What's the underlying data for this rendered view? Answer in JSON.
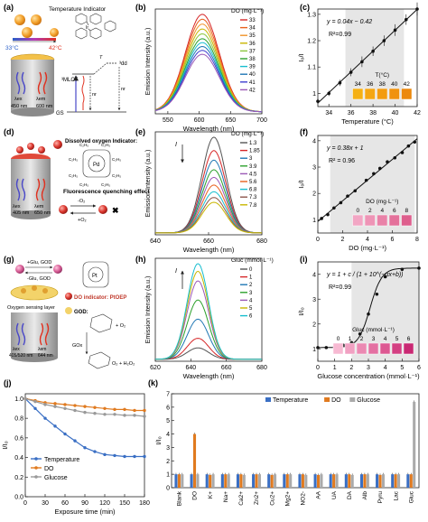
{
  "panels": {
    "a": {
      "label": "(a)",
      "temp_indicator": "Temperature Indicator",
      "t_low": "33°C",
      "t_high": "42°C",
      "lam_ex": "λex",
      "lam_ex_val": "450 nm",
      "lam_em": "λem",
      "lam_em_val": "600 nm",
      "state_dd": "³dd",
      "state_mlct": "³MLCT",
      "state_gs": "GS",
      "t_symbol": "T",
      "nr": "nr",
      "ir": "Ir"
    },
    "d": {
      "label": "(d)",
      "do_indicator": "Dissolved oxygen Indicator:",
      "lam_ex": "λex",
      "lam_ex_val": "405 nm",
      "lam_em": "λem",
      "lam_em_val": "650 nm",
      "quench": "Fluorescence quenching effect",
      "minus_o2": "-O₂",
      "plus_o2": "+O₂",
      "pd": "Pd",
      "c2h5": "C₂H₅"
    },
    "g": {
      "label": "(g)",
      "plus_glu": "+Glu, GOD",
      "minus_glu": "-Glu, GOD",
      "layer": "Oxygen sensing layer",
      "lam_ex": "λex",
      "lam_ex_val": "405/520 nm",
      "lam_em": "λem",
      "lam_em_val": "644 nm",
      "do_indicator": "DO indicator: PtOEP",
      "god": "GOD:",
      "pt": "Pt",
      "gox": "GOx",
      "o2": "O₂",
      "glu": "Glu",
      "plus_o2": "+ O₂",
      "o2h2o2": "O₂ + H₂O₂"
    },
    "j": {
      "label": "(j)"
    },
    "k": {
      "label": "(k)"
    }
  },
  "chart_data": [
    {
      "id": "b",
      "label": "(b)",
      "type": "line",
      "xlabel": "Wavelength (nm)",
      "ylabel": "Emission Intensity (a.u.)",
      "legend_title": "DO (mg·L⁻¹)",
      "xlim": [
        530,
        700
      ],
      "xticks": [
        550,
        600,
        650,
        700
      ],
      "peak_x": 605,
      "width": 27,
      "series": [
        {
          "name": "33",
          "peak": 1.0,
          "color": "#d62728"
        },
        {
          "name": "34",
          "peak": 0.95,
          "color": "#e8601c"
        },
        {
          "name": "35",
          "peak": 0.9,
          "color": "#f1932a"
        },
        {
          "name": "36",
          "peak": 0.85,
          "color": "#c9b600"
        },
        {
          "name": "37",
          "peak": 0.8,
          "color": "#8cc63e"
        },
        {
          "name": "38",
          "peak": 0.75,
          "color": "#2ca02c"
        },
        {
          "name": "39",
          "peak": 0.71,
          "color": "#17becf"
        },
        {
          "name": "40",
          "peak": 0.67,
          "color": "#1f77b4"
        },
        {
          "name": "41",
          "peak": 0.63,
          "color": "#3e3ecf"
        },
        {
          "name": "42",
          "peak": 0.59,
          "color": "#9b59b6"
        }
      ]
    },
    {
      "id": "c",
      "label": "(c)",
      "type": "scatter",
      "xlabel": "Temperature (°C)",
      "ylabel": "I₀/I",
      "equation": "y = 0.04x − 0.42",
      "r2": "R²=0.99",
      "inset_title": "T(°C)",
      "inset_labels": [
        "34",
        "36",
        "38",
        "40",
        "42"
      ],
      "xlim": [
        33,
        42
      ],
      "ylim": [
        0.95,
        1.32
      ],
      "xticks": [
        34,
        36,
        38,
        40,
        42
      ],
      "yticks": [
        1.0,
        1.1,
        1.2,
        1.3
      ],
      "x": [
        33,
        34,
        35,
        36,
        37,
        38,
        39,
        40,
        41,
        42
      ],
      "y": [
        0.97,
        1.0,
        1.04,
        1.08,
        1.12,
        1.16,
        1.2,
        1.24,
        1.28,
        1.32
      ],
      "err": [
        0.01,
        0.01,
        0.012,
        0.015,
        0.02,
        0.018,
        0.02,
        0.022,
        0.02,
        0.025
      ]
    },
    {
      "id": "e",
      "label": "(e)",
      "type": "line",
      "xlabel": "Wavelength (nm)",
      "ylabel": "Emission Intensity (a.u.)",
      "legend_title": "DO (mg·L⁻¹)",
      "xlim": [
        640,
        680
      ],
      "xticks": [
        640,
        660,
        680
      ],
      "peak_x": 662,
      "width": 4.5,
      "arrow_label": "I",
      "series": [
        {
          "name": "1.3",
          "peak": 1.0,
          "color": "#555555"
        },
        {
          "name": "1.85",
          "peak": 0.86,
          "color": "#d62728"
        },
        {
          "name": "3",
          "peak": 0.76,
          "color": "#1f77b4"
        },
        {
          "name": "3.9",
          "peak": 0.66,
          "color": "#2ca02c"
        },
        {
          "name": "4.5",
          "peak": 0.58,
          "color": "#9b59b6"
        },
        {
          "name": "5.6",
          "peak": 0.5,
          "color": "#e8601c"
        },
        {
          "name": "6.8",
          "peak": 0.43,
          "color": "#17becf"
        },
        {
          "name": "7.3",
          "peak": 0.37,
          "color": "#8c564b"
        },
        {
          "name": "7.8",
          "peak": 0.32,
          "color": "#c9b600"
        }
      ]
    },
    {
      "id": "f",
      "label": "(f)",
      "type": "scatter",
      "xlabel": "DO (mg·L⁻¹)",
      "ylabel": "I₀/I",
      "equation": "y = 0.38x + 1",
      "r2": "R² = 0.96",
      "inset_title": "DO (mg·L⁻¹)",
      "inset_labels": [
        "0",
        "2",
        "4",
        "6",
        "8"
      ],
      "xlim": [
        0,
        8
      ],
      "ylim": [
        0.5,
        4.2
      ],
      "xticks": [
        0,
        2,
        4,
        6,
        8
      ],
      "yticks": [
        1,
        2,
        3,
        4
      ],
      "x": [
        0.3,
        0.8,
        1.3,
        1.85,
        2.4,
        3.0,
        3.9,
        4.5,
        5.0,
        5.6,
        6.2,
        6.8,
        7.3,
        7.8
      ],
      "y": [
        1.05,
        1.2,
        1.45,
        1.65,
        1.9,
        2.1,
        2.5,
        2.75,
        2.95,
        3.2,
        3.35,
        3.55,
        3.8,
        3.95
      ]
    },
    {
      "id": "h",
      "label": "(h)",
      "type": "line",
      "xlabel": "Wavelength (nm)",
      "ylabel": "Emission Intensity (a.u.)",
      "legend_title": "Gluc (mmol·L⁻¹)",
      "xlim": [
        620,
        680
      ],
      "xticks": [
        620,
        640,
        660,
        680
      ],
      "peak_x": 644,
      "width": 6,
      "arrow_label": "I",
      "series": [
        {
          "name": "0",
          "peak": 0.12,
          "color": "#555555"
        },
        {
          "name": "1",
          "peak": 0.22,
          "color": "#d62728"
        },
        {
          "name": "2",
          "peak": 0.42,
          "color": "#1f77b4"
        },
        {
          "name": "3",
          "peak": 0.62,
          "color": "#2ca02c"
        },
        {
          "name": "4",
          "peak": 0.82,
          "color": "#9b59b6"
        },
        {
          "name": "5",
          "peak": 0.92,
          "color": "#c9b600"
        },
        {
          "name": "6",
          "peak": 1.0,
          "color": "#17becf"
        }
      ]
    },
    {
      "id": "i",
      "label": "(i)",
      "type": "scatter",
      "xlabel": "Glucose concentration (mmol·L⁻¹)",
      "ylabel": "I/I₀",
      "equation": "y = 1 + c / (1 + 10^(−αx+b))",
      "r2": "R²=0.99",
      "inset_title": "Gluc (mmol·L⁻¹)",
      "inset_labels": [
        "0",
        "1",
        "2",
        "3",
        "4",
        "5",
        "6"
      ],
      "xlim": [
        0,
        6
      ],
      "ylim": [
        0.5,
        4.5
      ],
      "xticks": [
        0,
        1,
        2,
        3,
        4,
        5,
        6
      ],
      "yticks": [
        1,
        2,
        3,
        4
      ],
      "x": [
        0,
        0.5,
        1,
        1.5,
        2,
        2.5,
        3,
        3.5,
        4,
        5,
        6
      ],
      "y": [
        1.05,
        1.05,
        1.1,
        1.15,
        1.25,
        1.6,
        2.4,
        3.2,
        3.9,
        4.2,
        4.25
      ]
    },
    {
      "id": "j",
      "label": "(j)",
      "type": "line",
      "xlabel": "Exposure time (min)",
      "ylabel": "I/I₀",
      "xlim": [
        0,
        180
      ],
      "ylim": [
        0,
        1.05
      ],
      "xticks": [
        0,
        30,
        60,
        90,
        120,
        150,
        180
      ],
      "yticks": [
        0.0,
        0.2,
        0.4,
        0.6,
        0.8,
        1.0
      ],
      "x": [
        0,
        15,
        30,
        45,
        60,
        75,
        90,
        105,
        120,
        135,
        150,
        165,
        180
      ],
      "series": [
        {
          "name": "Temperature",
          "color": "#3a6fc4",
          "values": [
            1.0,
            0.9,
            0.8,
            0.72,
            0.64,
            0.57,
            0.5,
            0.46,
            0.43,
            0.42,
            0.41,
            0.41,
            0.41
          ]
        },
        {
          "name": "DO",
          "color": "#e07a1f",
          "values": [
            1.0,
            0.98,
            0.96,
            0.95,
            0.94,
            0.93,
            0.92,
            0.91,
            0.9,
            0.89,
            0.89,
            0.88,
            0.88
          ]
        },
        {
          "name": "Glucose",
          "color": "#999999",
          "values": [
            1.0,
            0.97,
            0.94,
            0.92,
            0.9,
            0.88,
            0.86,
            0.85,
            0.84,
            0.84,
            0.83,
            0.83,
            0.82
          ]
        }
      ]
    },
    {
      "id": "k",
      "label": "(k)",
      "type": "bar",
      "ylabel": "I/I₀",
      "ylim": [
        0,
        7
      ],
      "yticks": [
        0,
        1,
        2,
        3,
        4,
        5,
        6,
        7
      ],
      "categories": [
        "Blank",
        "DO",
        "K+",
        "Na+",
        "Ca2+",
        "Zn2+",
        "Cu2+",
        "Mg2+",
        "NO2-",
        "AA",
        "UA",
        "DA",
        "Alb",
        "Pyru",
        "Lac",
        "Gluc"
      ],
      "series": [
        {
          "name": "Temperature",
          "color": "#3a6fc4",
          "values": [
            1.0,
            1.0,
            1.0,
            1.0,
            1.0,
            1.0,
            1.0,
            1.0,
            1.0,
            1.0,
            1.0,
            1.0,
            1.0,
            1.0,
            1.0,
            1.0
          ]
        },
        {
          "name": "DO",
          "color": "#e07a1f",
          "values": [
            1.0,
            4.0,
            0.95,
            1.0,
            1.0,
            1.0,
            0.95,
            1.0,
            1.0,
            0.95,
            1.0,
            1.0,
            1.0,
            0.95,
            1.0,
            1.0
          ]
        },
        {
          "name": "Glucose",
          "color": "#aaaaaa",
          "values": [
            1.0,
            1.0,
            1.0,
            1.0,
            0.95,
            1.0,
            1.0,
            1.0,
            0.95,
            1.0,
            1.0,
            0.95,
            1.0,
            1.0,
            1.0,
            6.4
          ]
        }
      ]
    }
  ]
}
